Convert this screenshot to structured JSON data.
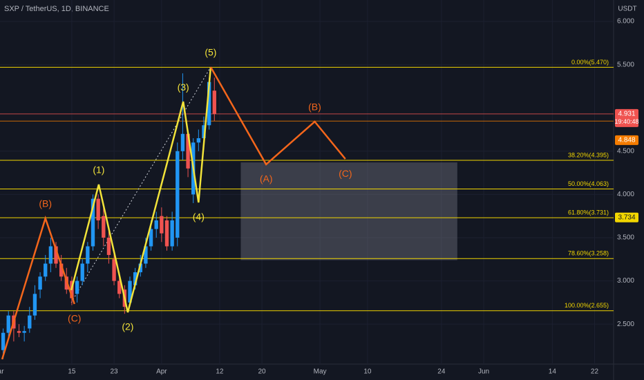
{
  "chart_data": {
    "type": "candlestick",
    "title": "SXP / TetherUS, 1D, BINANCE",
    "y_axis_label": "USDT",
    "xlim": [
      0.4,
      116.6
    ],
    "ylim": [
      2.038,
      6.248
    ],
    "grid": true,
    "xticks": [
      {
        "value": 0,
        "label": "Mar"
      },
      {
        "value": 14,
        "label": "15"
      },
      {
        "value": 22,
        "label": "23"
      },
      {
        "value": 31,
        "label": "Apr"
      },
      {
        "value": 42,
        "label": "12"
      },
      {
        "value": 50,
        "label": "20"
      },
      {
        "value": 61,
        "label": "May"
      },
      {
        "value": 70,
        "label": "10"
      },
      {
        "value": 84,
        "label": "24"
      },
      {
        "value": 92,
        "label": "Jun"
      },
      {
        "value": 105,
        "label": "14"
      },
      {
        "value": 113,
        "label": "22"
      }
    ],
    "yticks": [
      {
        "value": 2.5,
        "label": "2.500"
      },
      {
        "value": 3,
        "label": "3.000"
      },
      {
        "value": 3.5,
        "label": "3.500"
      },
      {
        "value": 4,
        "label": "4.000"
      },
      {
        "value": 4.5,
        "label": "4.500"
      },
      {
        "value": 5.5,
        "label": "5.500"
      },
      {
        "value": 6,
        "label": "6.000"
      }
    ],
    "up_color": "#2196f3",
    "down_color": "#ef5350",
    "x": [
      1,
      2,
      3,
      4,
      5,
      6,
      7,
      8,
      9,
      10,
      11,
      12,
      13,
      14,
      15,
      16,
      17,
      18,
      19,
      20,
      21,
      22,
      23,
      24,
      25,
      26,
      27,
      28,
      29,
      30,
      31,
      32,
      33,
      34,
      35,
      36,
      37,
      38,
      39,
      40,
      41
    ],
    "open": [
      2.2,
      2.4,
      2.6,
      2.42,
      2.4,
      2.45,
      2.6,
      2.9,
      3.05,
      3.2,
      3.4,
      3.2,
      3.05,
      3.0,
      2.85,
      3.0,
      3.2,
      3.4,
      3.95,
      3.75,
      3.5,
      3.25,
      3.0,
      2.9,
      2.75,
      2.95,
      3.1,
      3.2,
      3.4,
      3.6,
      3.75,
      3.7,
      3.4,
      3.5,
      4.5,
      4.7,
      4.0,
      4.6,
      4.65,
      4.8,
      5.2
    ],
    "high": [
      2.45,
      2.65,
      2.65,
      2.5,
      2.48,
      2.7,
      2.95,
      3.1,
      3.3,
      3.5,
      3.45,
      3.3,
      3.15,
      3.05,
      3.05,
      3.25,
      3.45,
      4.0,
      4.0,
      3.85,
      3.6,
      3.35,
      3.1,
      2.95,
      3.05,
      3.15,
      3.3,
      3.5,
      3.7,
      3.8,
      3.85,
      3.75,
      3.8,
      4.6,
      5.4,
      4.75,
      4.65,
      4.75,
      4.9,
      5.35,
      5.35
    ],
    "low": [
      2.1,
      2.35,
      2.3,
      2.35,
      2.3,
      2.4,
      2.55,
      2.8,
      3.0,
      3.1,
      3.15,
      3.0,
      2.85,
      2.72,
      2.75,
      2.95,
      3.1,
      3.35,
      3.6,
      3.4,
      3.2,
      2.95,
      2.8,
      2.62,
      2.7,
      2.9,
      3.05,
      3.15,
      3.35,
      3.5,
      3.45,
      3.35,
      3.35,
      3.4,
      4.4,
      4.2,
      3.9,
      4.5,
      4.55,
      4.75,
      4.85
    ],
    "close": [
      2.4,
      2.6,
      2.45,
      2.4,
      2.42,
      2.6,
      2.85,
      3.05,
      3.2,
      3.4,
      3.2,
      3.05,
      2.9,
      2.8,
      3.0,
      3.2,
      3.4,
      3.95,
      3.7,
      3.5,
      3.3,
      3.0,
      2.85,
      2.7,
      3.0,
      3.1,
      3.2,
      3.4,
      3.6,
      3.7,
      3.55,
      3.4,
      3.7,
      4.5,
      4.7,
      4.3,
      4.6,
      4.65,
      4.8,
      5.3,
      4.931
    ],
    "fib_color": "#f2d600",
    "fib_levels": [
      {
        "value": 5.47,
        "label": "0.00%(5.470)"
      },
      {
        "value": 4.395,
        "label": "38.20%(4.395)"
      },
      {
        "value": 4.063,
        "label": "50.00%(4.063)"
      },
      {
        "value": 3.731,
        "label": "61.80%(3.731)"
      },
      {
        "value": 3.258,
        "label": "78.60%(3.258)"
      },
      {
        "value": 2.655,
        "label": "100.00%(2.655)"
      }
    ],
    "zone": {
      "x": [
        46,
        87
      ],
      "y": [
        3.24,
        4.37
      ]
    },
    "trendline": {
      "x": [
        13.9,
        40.3
      ],
      "y": [
        2.75,
        5.473
      ]
    },
    "waves": [
      {
        "color": "#f2e33a",
        "x": [
          13.9,
          19.1,
          24.6,
          35.1,
          38.0,
          40.3
        ],
        "y": [
          2.893,
          4.115,
          2.637,
          5.073,
          3.907,
          5.473
        ],
        "labels": [
          null,
          "(1)",
          "(2)",
          "(3)",
          "(4)",
          "(5)"
        ]
      },
      {
        "color": "#f4661b",
        "x": [
          0.8,
          9.0,
          14.5
        ],
        "y": [
          2.094,
          3.724,
          2.733
        ],
        "labels": [
          null,
          "(B)",
          "(C)"
        ]
      },
      {
        "color": "#f4661b",
        "x": [
          40.3,
          50.8,
          60.0,
          65.8
        ],
        "y": [
          5.473,
          4.347,
          4.842,
          4.41
        ],
        "labels": [
          null,
          "(A)",
          "(B)",
          "(C)"
        ]
      }
    ],
    "price_badges": [
      {
        "value": 4.931,
        "label": "4.931",
        "sub": "19:40:48",
        "color": "#ef5350",
        "line": true
      },
      {
        "value": 4.848,
        "label": "4.848",
        "color": "#f57c00",
        "line": true
      },
      {
        "value": 3.734,
        "label": "3.734",
        "color": "#f2d600",
        "line": false
      }
    ]
  }
}
